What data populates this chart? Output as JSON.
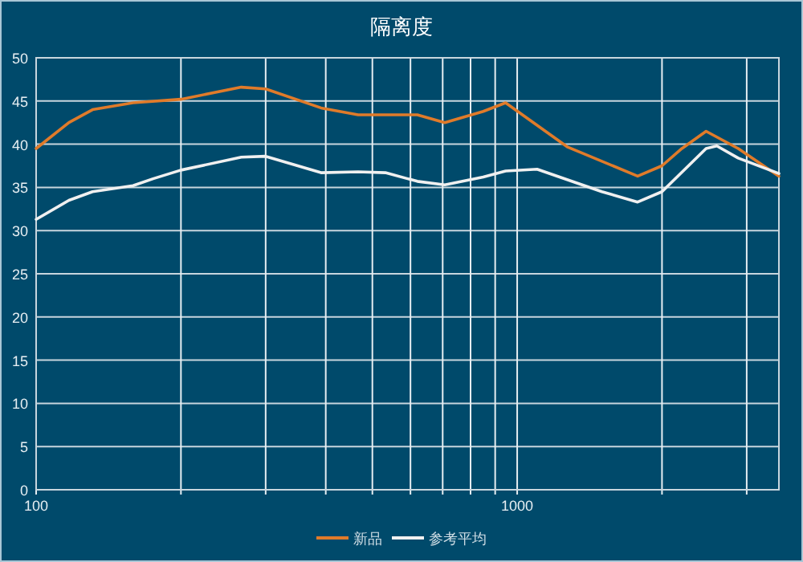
{
  "chart_data": {
    "type": "line",
    "title": "隔离度",
    "log": "x",
    "xlim": [
      100,
      3500
    ],
    "xticks": [
      100,
      {
        "value": 200,
        "label": null
      },
      {
        "value": 300,
        "label": null
      },
      {
        "value": 400,
        "label": null
      },
      {
        "value": 500,
        "label": null
      },
      {
        "value": 600,
        "label": null
      },
      {
        "value": 700,
        "label": null
      },
      {
        "value": 800,
        "label": null
      },
      {
        "value": 900,
        "label": null
      },
      1000,
      {
        "value": 2000,
        "label": null
      },
      {
        "value": 3000,
        "label": null
      }
    ],
    "ylim": [
      0,
      50
    ],
    "yticks": [
      0,
      5,
      10,
      15,
      20,
      25,
      30,
      35,
      40,
      45,
      50
    ],
    "grid": true,
    "legend": "bottom",
    "marker": "none",
    "line_style": "solid",
    "series": [
      {
        "name": "新品",
        "color": "#e07b2a",
        "x": [
          100,
          117,
          131,
          159,
          200,
          267,
          300,
          391,
          467,
          532,
          620,
          707,
          850,
          946,
          1270,
          1780,
          2000,
          2200,
          2470,
          2880,
          3500
        ],
        "values": [
          39.5,
          42.5,
          44,
          44.8,
          45.2,
          46.6,
          46.4,
          44.2,
          43.4,
          43.4,
          43.4,
          42.5,
          43.8,
          44.8,
          39.7,
          36.3,
          37.5,
          39.5,
          41.5,
          39.5,
          36.3
        ]
      },
      {
        "name": "参考平均",
        "color": "#f0f0f0",
        "x": [
          100,
          117,
          131,
          159,
          175,
          200,
          267,
          300,
          391,
          467,
          532,
          620,
          707,
          850,
          946,
          1100,
          1270,
          1500,
          1780,
          2000,
          2470,
          2600,
          2880,
          3500
        ],
        "values": [
          31.3,
          33.5,
          34.5,
          35.2,
          36,
          37,
          38.5,
          38.6,
          36.7,
          36.8,
          36.7,
          35.7,
          35.3,
          36.2,
          36.9,
          37.1,
          35.9,
          34.5,
          33.3,
          34.5,
          39.5,
          39.8,
          38.4,
          36.6
        ]
      }
    ]
  }
}
